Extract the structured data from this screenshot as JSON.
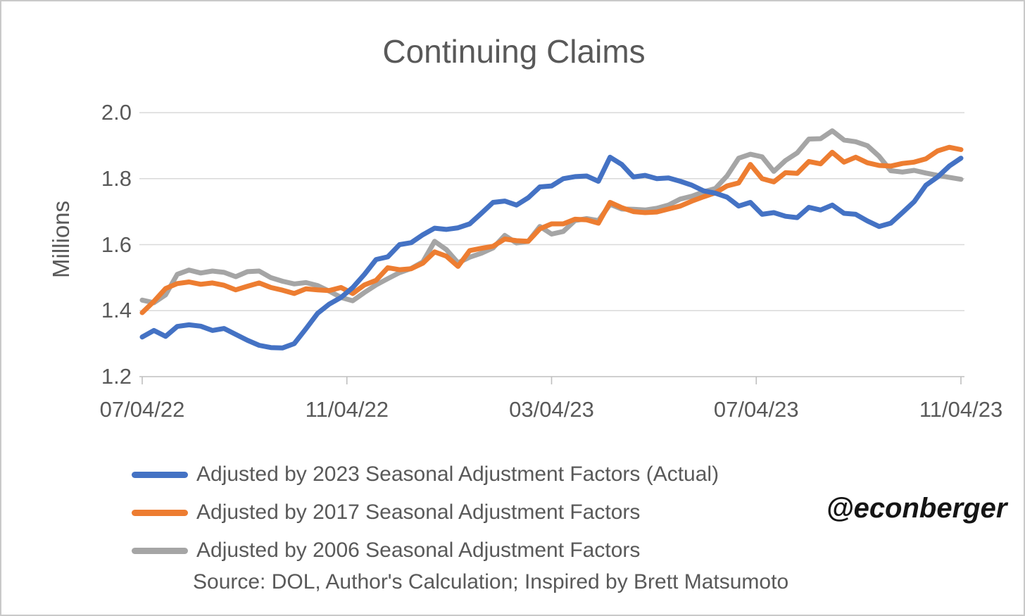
{
  "title": "Continuing Claims",
  "watermark": "@econberger",
  "colors": {
    "text": "#595959",
    "gridline": "#D9D9D9",
    "axis": "#BFBFBF",
    "series_blue": "#4472C4",
    "series_orange": "#ED7D31",
    "series_gray": "#A5A5A5"
  },
  "chart_data": {
    "type": "line",
    "title": "Continuing Claims",
    "xlabel": "",
    "ylabel": "Millions",
    "ylim": [
      1.2,
      2.0
    ],
    "yticks": [
      2.0,
      1.8,
      1.6,
      1.4,
      1.2
    ],
    "xtick_labels": [
      "07/04/22",
      "11/04/22",
      "03/04/23",
      "07/04/23",
      "11/04/23"
    ],
    "grid": true,
    "legend_position": "bottom-left",
    "x_unit": "weekly observations from 07/04/22 to 11/04/23",
    "source_note": "Source: DOL, Author's Calculation; Inspired by Brett Matsumoto",
    "series": [
      {
        "name": "Adjusted by 2023 Seasonal Adjustment Factors (Actual)",
        "color": "#4472C4",
        "values": [
          1.32,
          1.34,
          1.322,
          1.352,
          1.357,
          1.353,
          1.34,
          1.346,
          1.328,
          1.31,
          1.295,
          1.288,
          1.287,
          1.3,
          1.345,
          1.392,
          1.42,
          1.44,
          1.47,
          1.51,
          1.555,
          1.563,
          1.6,
          1.606,
          1.63,
          1.65,
          1.646,
          1.651,
          1.663,
          1.695,
          1.728,
          1.732,
          1.72,
          1.742,
          1.775,
          1.778,
          1.8,
          1.806,
          1.808,
          1.792,
          1.865,
          1.843,
          1.805,
          1.81,
          1.8,
          1.802,
          1.792,
          1.78,
          1.763,
          1.756,
          1.744,
          1.717,
          1.728,
          1.692,
          1.697,
          1.686,
          1.682,
          1.713,
          1.705,
          1.72,
          1.695,
          1.692,
          1.672,
          1.655,
          1.665,
          1.697,
          1.73,
          1.78,
          1.805,
          1.838,
          1.862
        ]
      },
      {
        "name": "Adjusted by 2017 Seasonal Adjustment Factors",
        "color": "#ED7D31",
        "values": [
          1.394,
          1.428,
          1.467,
          1.482,
          1.487,
          1.48,
          1.484,
          1.477,
          1.463,
          1.474,
          1.484,
          1.47,
          1.462,
          1.452,
          1.466,
          1.463,
          1.461,
          1.47,
          1.452,
          1.478,
          1.492,
          1.53,
          1.524,
          1.527,
          1.544,
          1.578,
          1.565,
          1.534,
          1.582,
          1.589,
          1.595,
          1.617,
          1.612,
          1.61,
          1.648,
          1.663,
          1.663,
          1.677,
          1.675,
          1.665,
          1.728,
          1.712,
          1.7,
          1.697,
          1.699,
          1.708,
          1.717,
          1.732,
          1.745,
          1.757,
          1.778,
          1.787,
          1.843,
          1.8,
          1.79,
          1.818,
          1.816,
          1.852,
          1.845,
          1.88,
          1.85,
          1.865,
          1.848,
          1.84,
          1.838,
          1.846,
          1.85,
          1.86,
          1.884,
          1.895,
          1.888
        ]
      },
      {
        "name": "Adjusted by 2006 Seasonal Adjustment Factors",
        "color": "#A5A5A5",
        "values": [
          1.432,
          1.424,
          1.448,
          1.51,
          1.523,
          1.514,
          1.52,
          1.516,
          1.503,
          1.518,
          1.52,
          1.5,
          1.489,
          1.481,
          1.485,
          1.476,
          1.459,
          1.44,
          1.43,
          1.455,
          1.478,
          1.497,
          1.515,
          1.528,
          1.548,
          1.61,
          1.585,
          1.545,
          1.562,
          1.574,
          1.59,
          1.628,
          1.605,
          1.61,
          1.655,
          1.632,
          1.64,
          1.673,
          1.679,
          1.673,
          1.722,
          1.708,
          1.707,
          1.705,
          1.71,
          1.72,
          1.738,
          1.747,
          1.76,
          1.77,
          1.808,
          1.862,
          1.874,
          1.866,
          1.822,
          1.855,
          1.878,
          1.92,
          1.921,
          1.945,
          1.917,
          1.912,
          1.9,
          1.868,
          1.824,
          1.82,
          1.825,
          1.817,
          1.81,
          1.804,
          1.798
        ]
      }
    ]
  }
}
